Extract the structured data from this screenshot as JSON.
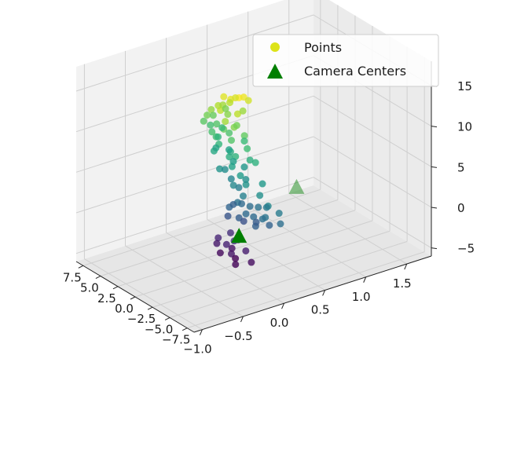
{
  "chart_data": {
    "type": "scatter",
    "projection": "3d",
    "colormap": "viridis",
    "grid": true,
    "legend_placement": "top-right",
    "axes": {
      "x": {
        "ticks": [
          "−7.5",
          "−5.0",
          "−2.5",
          "0.0",
          "2.5",
          "5.0",
          "7.5"
        ],
        "range": [
          -8.5,
          8.5
        ]
      },
      "y": {
        "ticks": [
          "−1.0",
          "−0.5",
          "0.0",
          "0.5",
          "1.0",
          "1.5"
        ],
        "range": [
          -1.1,
          1.8
        ]
      },
      "z": {
        "ticks": [
          "−5",
          "0",
          "5",
          "10",
          "15"
        ],
        "range": [
          -6,
          18
        ]
      }
    },
    "legend": [
      {
        "label": "Points",
        "marker": "circle",
        "color": "#dde318"
      },
      {
        "label": "Camera Centers",
        "marker": "triangle",
        "color": "#007f00"
      }
    ],
    "series": [
      {
        "name": "Points",
        "marker": "circle",
        "points": [
          [
            -2.0,
            0.0,
            16
          ],
          [
            -1.5,
            0.1,
            15.5
          ],
          [
            -0.8,
            0.0,
            15.2
          ],
          [
            -0.3,
            0.1,
            14.8
          ],
          [
            0.2,
            0.0,
            15.0
          ],
          [
            -1.0,
            0.2,
            14.5
          ],
          [
            -1.8,
            0.0,
            13.9
          ],
          [
            -0.5,
            -0.1,
            14.0
          ],
          [
            0.5,
            0.1,
            13.8
          ],
          [
            1.0,
            0.0,
            13.5
          ],
          [
            1.5,
            0.1,
            13.0
          ],
          [
            2.0,
            0.0,
            12.5
          ],
          [
            -1.2,
            -0.1,
            13.0
          ],
          [
            -0.2,
            0.2,
            12.8
          ],
          [
            0.8,
            0.1,
            12.2
          ],
          [
            2.3,
            0.2,
            11.8
          ],
          [
            2.6,
            0.0,
            11.5
          ],
          [
            2.9,
            0.1,
            11.0
          ],
          [
            3.1,
            0.0,
            10.5
          ],
          [
            2.4,
            0.1,
            10.2
          ],
          [
            1.9,
            0.0,
            9.8
          ],
          [
            3.3,
            0.1,
            9.6
          ],
          [
            2.8,
            0.2,
            9.2
          ],
          [
            2.2,
            0.1,
            8.7
          ],
          [
            -1.3,
            0.0,
            12.0
          ],
          [
            -0.5,
            0.1,
            11.5
          ],
          [
            0.2,
            0.0,
            11.0
          ],
          [
            -1.6,
            0.1,
            10.8
          ],
          [
            -0.9,
            0.0,
            10.2
          ],
          [
            0.6,
            0.1,
            10.0
          ],
          [
            1.3,
            0.0,
            9.5
          ],
          [
            -2.0,
            0.1,
            9.4
          ],
          [
            -0.4,
            0.2,
            9.2
          ],
          [
            0.9,
            0.0,
            8.8
          ],
          [
            -1.5,
            0.0,
            8.5
          ],
          [
            -2.4,
            0.1,
            8.2
          ],
          [
            -0.6,
            0.0,
            8.0
          ],
          [
            0.4,
            0.1,
            7.8
          ],
          [
            1.6,
            0.0,
            7.6
          ],
          [
            -3.2,
            0.1,
            8.3
          ],
          [
            1.8,
            0.2,
            7.0
          ],
          [
            2.5,
            0.1,
            7.2
          ],
          [
            -1.0,
            0.0,
            7.0
          ],
          [
            0.0,
            0.1,
            6.8
          ],
          [
            -2.2,
            0.0,
            6.5
          ],
          [
            -0.4,
            0.2,
            6.0
          ],
          [
            0.8,
            0.0,
            5.8
          ],
          [
            -1.8,
            0.1,
            5.5
          ],
          [
            -3.0,
            0.0,
            5.8
          ],
          [
            1.2,
            0.1,
            5.2
          ],
          [
            -1.2,
            0.0,
            4.8
          ],
          [
            0.3,
            0.1,
            4.5
          ],
          [
            -2.6,
            0.0,
            4.2
          ],
          [
            -0.8,
            0.1,
            4.0
          ],
          [
            -4.2,
            0.1,
            6.2
          ],
          [
            -5.0,
            0.0,
            5.5
          ],
          [
            -6.2,
            0.0,
            4.8
          ],
          [
            -6.6,
            0.1,
            3.8
          ],
          [
            -5.8,
            0.0,
            3.2
          ],
          [
            -6.8,
            0.1,
            2.6
          ],
          [
            -5.4,
            0.0,
            2.8
          ],
          [
            -4.8,
            0.1,
            3.6
          ],
          [
            -4.1,
            0.0,
            2.4
          ],
          [
            -3.6,
            0.1,
            3.0
          ],
          [
            -3.0,
            0.0,
            2.2
          ],
          [
            -2.4,
            0.1,
            2.5
          ],
          [
            -1.8,
            0.0,
            3.0
          ],
          [
            -1.2,
            0.1,
            2.2
          ],
          [
            -0.6,
            0.0,
            1.8
          ],
          [
            0.0,
            0.1,
            1.5
          ],
          [
            -2.0,
            0.0,
            1.2
          ],
          [
            -3.3,
            0.1,
            1.0
          ],
          [
            -4.4,
            0.0,
            1.4
          ],
          [
            -5.2,
            0.1,
            1.6
          ],
          [
            -0.4,
            0.0,
            0.6
          ],
          [
            -1.5,
            0.1,
            0.2
          ],
          [
            -1.3,
            0.0,
            -2.0
          ],
          [
            -0.7,
            0.1,
            -2.5
          ],
          [
            -0.2,
            0.0,
            -3.0
          ],
          [
            0.4,
            0.1,
            -2.2
          ],
          [
            1.0,
            0.0,
            -2.8
          ],
          [
            -1.8,
            0.1,
            -3.3
          ],
          [
            -0.9,
            0.0,
            -3.8
          ],
          [
            0.2,
            0.1,
            -4.0
          ],
          [
            1.2,
            0.0,
            -3.6
          ],
          [
            -2.6,
            0.1,
            -4.3
          ],
          [
            -1.5,
            0.0,
            -4.8
          ],
          [
            -0.3,
            0.1,
            -5.0
          ],
          [
            0.7,
            0.0,
            -4.5
          ]
        ]
      },
      {
        "name": "Camera Centers",
        "marker": "triangle",
        "points": [
          [
            -2.0,
            0.0,
            -1.0
          ],
          [
            1.5,
            1.0,
            0.0
          ]
        ]
      }
    ]
  }
}
